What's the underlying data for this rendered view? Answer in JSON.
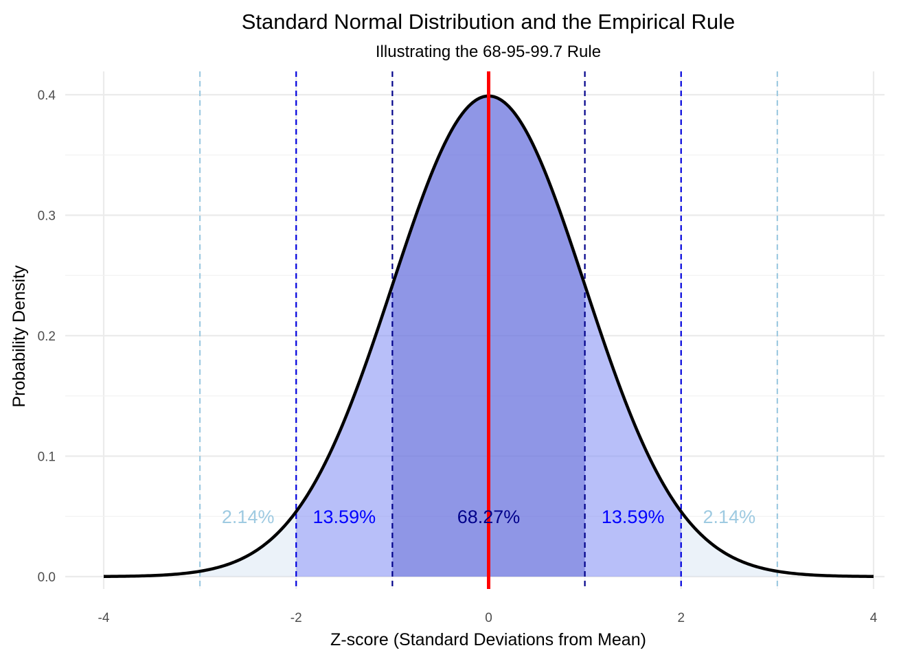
{
  "chart_data": {
    "type": "area",
    "title": "Standard Normal Distribution and the Empirical Rule",
    "subtitle": "Illustrating the 68-95-99.7 Rule",
    "xlabel": "Z-score (Standard Deviations from Mean)",
    "ylabel": "Probability Density",
    "xlim": [
      -4,
      4
    ],
    "ylim": [
      0,
      0.4
    ],
    "x_ticks": [
      -4,
      -2,
      0,
      2,
      4
    ],
    "y_ticks": [
      0.0,
      0.1,
      0.2,
      0.3,
      0.4
    ],
    "x_tick_labels": [
      "-4",
      "-2",
      "0",
      "2",
      "4"
    ],
    "y_tick_labels": [
      "0.0",
      "0.1",
      "0.2",
      "0.3",
      "0.4"
    ],
    "grid": true,
    "mean_line": {
      "x": 0,
      "color": "#ff0000"
    },
    "sd_lines": [
      {
        "x": -3,
        "color": "#9ecae1"
      },
      {
        "x": -2,
        "color": "#0000dd"
      },
      {
        "x": -1,
        "color": "#00008b"
      },
      {
        "x": 1,
        "color": "#00008b"
      },
      {
        "x": 2,
        "color": "#0000dd"
      },
      {
        "x": 3,
        "color": "#9ecae1"
      }
    ],
    "regions": [
      {
        "from": -1,
        "to": 1,
        "fill": "#00008b",
        "opacity": 0.4
      },
      {
        "from": -2,
        "to": 2,
        "fill": "#3333ff",
        "opacity": 0.38
      },
      {
        "from": -3,
        "to": 3,
        "fill": "#c6dbef",
        "opacity": 0.35
      }
    ],
    "labels": [
      {
        "text": "2.14%",
        "x": -2.5,
        "y": 0.049,
        "color": "#9ecae1"
      },
      {
        "text": "13.59%",
        "x": -1.5,
        "y": 0.049,
        "color": "#0000ff"
      },
      {
        "text": "68.27%",
        "x": 0,
        "y": 0.049,
        "color": "#00008b"
      },
      {
        "text": "13.59%",
        "x": 1.5,
        "y": 0.049,
        "color": "#0000ff"
      },
      {
        "text": "2.14%",
        "x": 2.5,
        "y": 0.049,
        "color": "#9ecae1"
      }
    ]
  }
}
